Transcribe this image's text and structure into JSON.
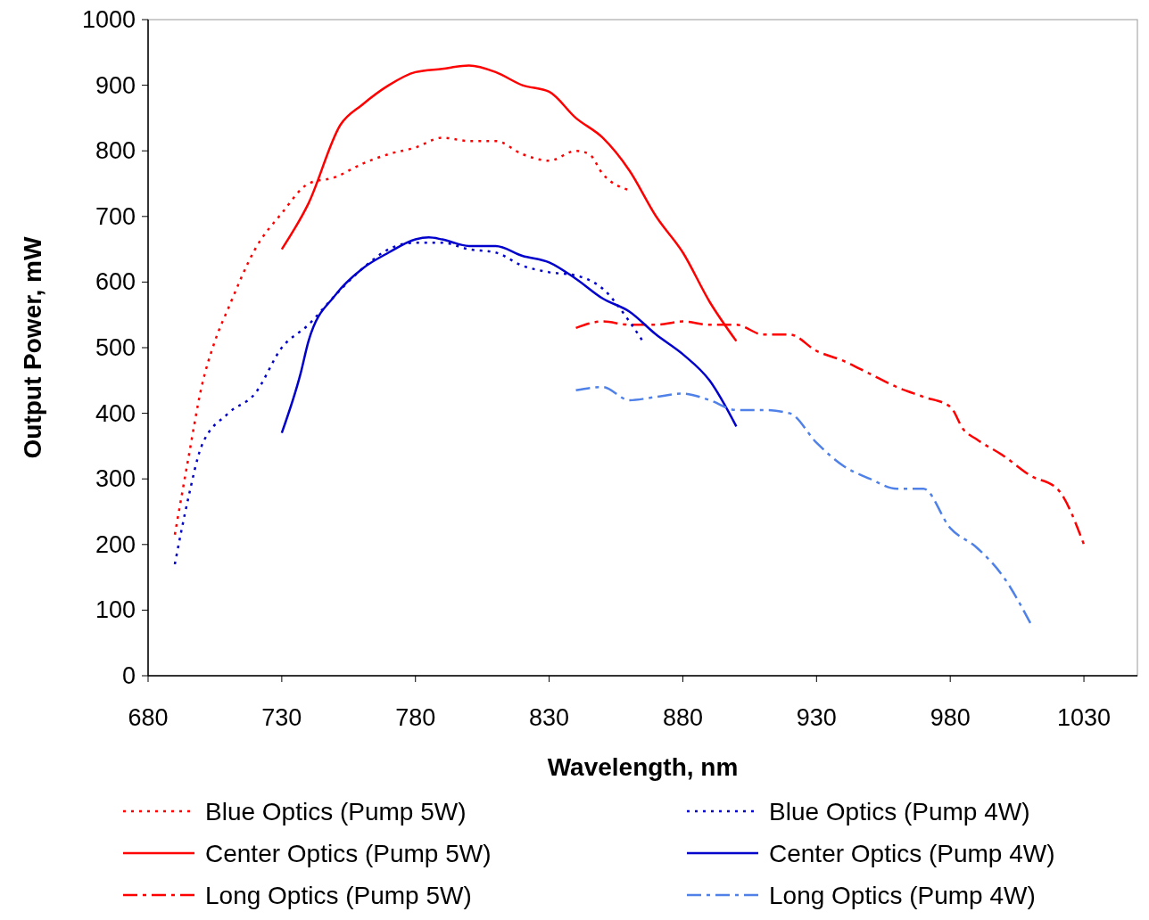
{
  "chart_data": {
    "type": "line",
    "xlabel": "Wavelength, nm",
    "ylabel": "Output Power, mW",
    "xlim": [
      680,
      1050
    ],
    "ylim": [
      0,
      1000
    ],
    "xticks": [
      680,
      730,
      780,
      830,
      880,
      930,
      980,
      1030
    ],
    "yticks": [
      0,
      100,
      200,
      300,
      400,
      500,
      600,
      700,
      800,
      900,
      1000
    ],
    "grid": false,
    "legend": "bottom",
    "series": [
      {
        "name": "Blue Optics (Pump 5W)",
        "color": "#ff0000",
        "line_style": "dotted",
        "x": [
          690,
          695,
          700,
          705,
          710,
          720,
          730,
          740,
          750,
          760,
          770,
          780,
          790,
          800,
          810,
          820,
          830,
          840,
          845,
          850,
          860
        ],
        "values": [
          215,
          330,
          440,
          510,
          560,
          650,
          705,
          750,
          760,
          780,
          795,
          805,
          820,
          815,
          815,
          795,
          785,
          800,
          795,
          765,
          740
        ]
      },
      {
        "name": "Center Optics (Pump 5W)",
        "color": "#ff0000",
        "line_style": "solid",
        "x": [
          730,
          740,
          752,
          760,
          770,
          780,
          790,
          800,
          810,
          820,
          830,
          840,
          850,
          860,
          870,
          880,
          890,
          900
        ],
        "values": [
          650,
          720,
          840,
          870,
          900,
          920,
          925,
          930,
          920,
          900,
          890,
          850,
          820,
          770,
          700,
          645,
          570,
          510
        ]
      },
      {
        "name": "Long Optics (Pump 5W)",
        "color": "#ff0000",
        "line_style": "dashed",
        "x": [
          840,
          850,
          860,
          870,
          880,
          890,
          900,
          910,
          920,
          930,
          940,
          950,
          960,
          970,
          980,
          985,
          990,
          1000,
          1010,
          1020,
          1030
        ],
        "values": [
          530,
          540,
          535,
          535,
          540,
          535,
          535,
          520,
          520,
          495,
          480,
          460,
          440,
          425,
          410,
          375,
          360,
          335,
          305,
          285,
          200
        ]
      },
      {
        "name": "Blue Optics (Pump 4W)",
        "color": "#0000cc",
        "line_style": "dotted",
        "x": [
          690,
          695,
          700,
          710,
          720,
          730,
          740,
          750,
          760,
          770,
          780,
          790,
          800,
          810,
          820,
          830,
          840,
          850,
          860,
          865
        ],
        "values": [
          170,
          270,
          350,
          400,
          430,
          500,
          535,
          580,
          620,
          650,
          660,
          660,
          650,
          645,
          625,
          615,
          610,
          590,
          540,
          510
        ]
      },
      {
        "name": "Center Optics (Pump 4W)",
        "color": "#0000cc",
        "line_style": "solid",
        "x": [
          730,
          737,
          740,
          750,
          760,
          770,
          780,
          785,
          790,
          800,
          810,
          820,
          830,
          840,
          850,
          860,
          870,
          880,
          890,
          900
        ],
        "values": [
          370,
          460,
          510,
          580,
          620,
          645,
          665,
          668,
          665,
          655,
          655,
          640,
          630,
          605,
          575,
          555,
          520,
          490,
          450,
          380
        ]
      },
      {
        "name": "Long Optics (Pump 4W)",
        "color": "#4f81e8",
        "line_style": "dashed",
        "x": [
          840,
          850,
          860,
          870,
          880,
          890,
          900,
          910,
          920,
          930,
          940,
          950,
          960,
          970,
          980,
          990,
          1000,
          1010
        ],
        "values": [
          435,
          440,
          420,
          425,
          430,
          420,
          405,
          405,
          400,
          355,
          320,
          300,
          285,
          285,
          225,
          195,
          150,
          80
        ]
      }
    ]
  }
}
